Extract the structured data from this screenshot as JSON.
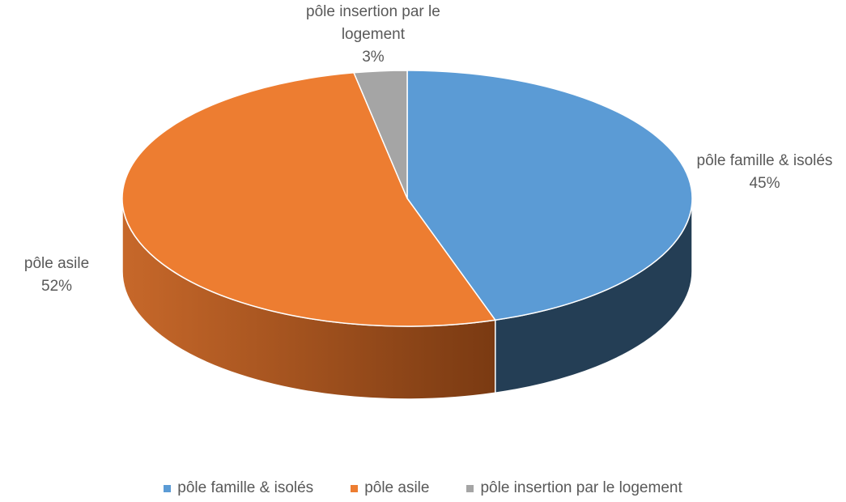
{
  "chart_data": {
    "type": "pie",
    "categories": [
      "pôle famille & isolés",
      "pôle asile",
      "pôle insertion par le logement"
    ],
    "values": [
      45,
      52,
      3
    ],
    "value_labels": [
      "45%",
      "52%",
      "3%"
    ],
    "colors": [
      "#5b9bd5",
      "#ed7d31",
      "#a5a5a5"
    ],
    "legend": "bottom"
  }
}
